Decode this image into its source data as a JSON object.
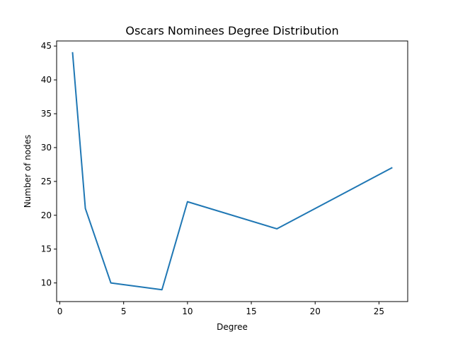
{
  "chart_data": {
    "type": "line",
    "title": "Oscars Nominees Degree Distribution",
    "xlabel": "Degree",
    "ylabel": "Number of nodes",
    "xlim": [
      -0.25,
      27.25
    ],
    "ylim": [
      7.25,
      45.75
    ],
    "xticks": [
      0,
      5,
      10,
      15,
      20,
      25
    ],
    "yticks": [
      10,
      15,
      20,
      25,
      30,
      35,
      40,
      45
    ],
    "grid": false,
    "series": [
      {
        "color": "#1f77b4",
        "x": [
          1,
          2,
          4,
          8,
          10,
          17,
          26
        ],
        "y": [
          44,
          21,
          10,
          9,
          22,
          18,
          27
        ]
      }
    ]
  }
}
